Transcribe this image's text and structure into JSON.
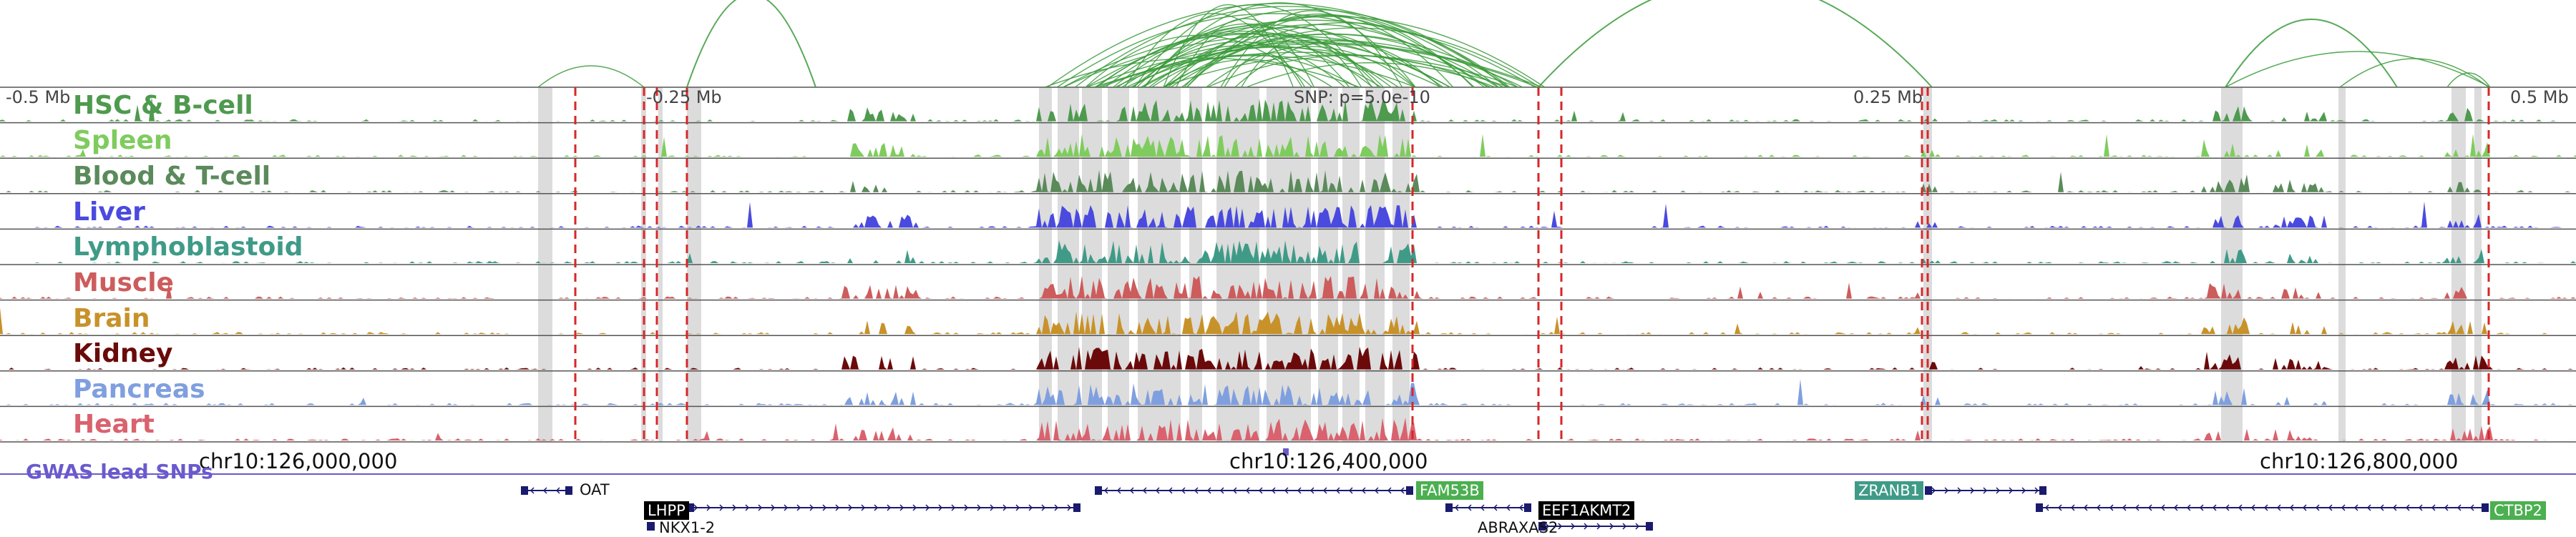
{
  "scale_labels": [
    "-0.5 Mb",
    "-0.25 Mb",
    "SNP: p=5.0e-10",
    "0.25 Mb",
    "0.5 Mb"
  ],
  "tracks": [
    {
      "name": "HSC & B-cell",
      "color": "#4e9a4e"
    },
    {
      "name": "Spleen",
      "color": "#7fcc5e"
    },
    {
      "name": "Blood & T-cell",
      "color": "#5b8a5b"
    },
    {
      "name": "Liver",
      "color": "#4a4adf"
    },
    {
      "name": "Lymphoblastoid",
      "color": "#3f9b88"
    },
    {
      "name": "Muscle",
      "color": "#cd5c5c"
    },
    {
      "name": "Brain",
      "color": "#c8922a"
    },
    {
      "name": "Kidney",
      "color": "#6b0a0a"
    },
    {
      "name": "Pancreas",
      "color": "#7f9fdf"
    },
    {
      "name": "Heart",
      "color": "#d9626e"
    }
  ],
  "coordinates": [
    "chr10:126,000,000",
    "chr10:126,400,000",
    "chr10:126,800,000"
  ],
  "gwas_label": "GWAS lead SNPs",
  "genes": [
    {
      "name": "OAT",
      "style": "plain"
    },
    {
      "name": "LHPP",
      "style": "black"
    },
    {
      "name": "NKX1-2",
      "style": "plain"
    },
    {
      "name": "FAM53B",
      "style": "green"
    },
    {
      "name": "EEF1AKMT2",
      "style": "black"
    },
    {
      "name": "ABRAXAS2",
      "style": "plain"
    },
    {
      "name": "ZRANB1",
      "style": "teal"
    },
    {
      "name": "CTBP2",
      "style": "green"
    }
  ],
  "colors": {
    "arc": "#3a9a3a",
    "highlight": "#dcdcdc",
    "snp_line": "#d62728",
    "gene_body": "#1a1a6e",
    "gwas_line": "#6a5acd",
    "gene_green": "#4caf50",
    "gene_teal": "#3f9b88",
    "gene_black": "#000000"
  }
}
